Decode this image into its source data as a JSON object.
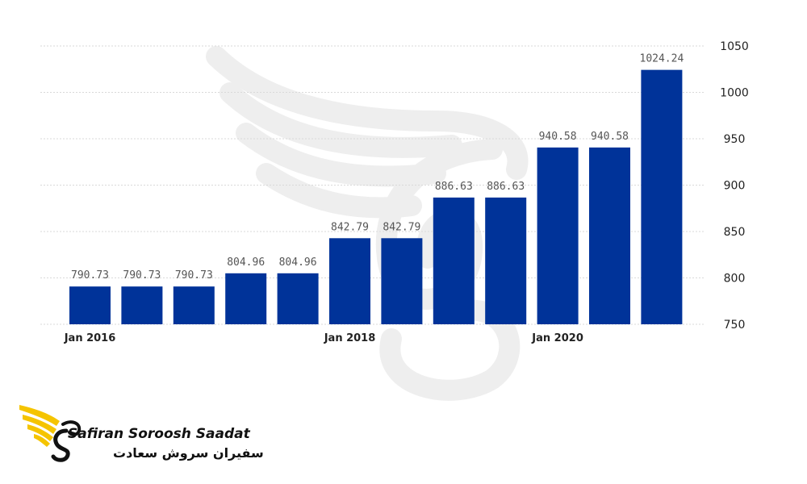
{
  "chart_data": {
    "type": "bar",
    "categories": [
      "Jan 2016",
      "",
      "",
      "",
      "",
      "Jan 2018",
      "",
      "",
      "",
      "Jan 2020",
      "",
      ""
    ],
    "values": [
      790.73,
      790.73,
      790.73,
      804.96,
      804.96,
      842.79,
      842.79,
      886.63,
      886.63,
      940.58,
      940.58,
      1024.24
    ],
    "value_labels": [
      "790.73",
      "790.73",
      "790.73",
      "804.96",
      "804.96",
      "842.79",
      "842.79",
      "886.63",
      "886.63",
      "940.58",
      "940.58",
      "1024.24"
    ],
    "x_tick_labels": [
      "Jan 2016",
      "Jan 2018",
      "Jan 2020"
    ],
    "y_ticks": [
      750,
      800,
      850,
      900,
      950,
      1000,
      1050
    ],
    "y_tick_labels": [
      "750",
      "800",
      "850",
      "900",
      "950",
      "1000",
      "1050"
    ],
    "ylim": [
      750,
      1050
    ],
    "y_axis_side": "right",
    "grid": true,
    "bar_color": "#003399",
    "title": "",
    "xlabel": "",
    "ylabel": ""
  },
  "logo": {
    "name": "Safiran Soroosh Saadat",
    "name_fa": "سفیران سروش سعادت",
    "accent_color": "#f5c400"
  },
  "colors": {
    "grid": "#d9d9d9",
    "label_text": "#555555",
    "axis_text": "#222222",
    "watermark": "#ececec"
  }
}
